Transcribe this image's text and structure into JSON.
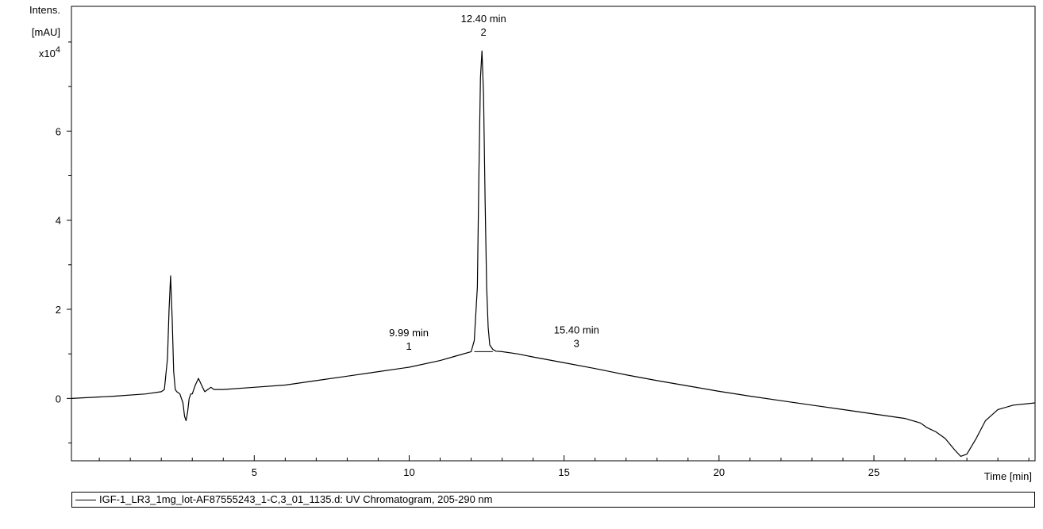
{
  "chart_data": {
    "type": "line",
    "title": "",
    "xlabel": "Time [min]",
    "ylabel_lines": [
      "Intens.",
      "[mAU]",
      "x10"
    ],
    "ylabel_exponent": "4",
    "xlim": [
      -0.9,
      30.2
    ],
    "ylim": [
      -1.4,
      8.8
    ],
    "x_ticks": [
      5,
      10,
      15,
      20,
      25
    ],
    "y_ticks": [
      0,
      2,
      4,
      6
    ],
    "grid": false,
    "legend_position": "bottom",
    "series": [
      {
        "name": "IGF-1_LR3_1mg_lot-AF87555243_1-C,3_01_1135.d: UV Chromatogram, 205-290 nm",
        "color": "#000000",
        "x": [
          -0.9,
          0.5,
          1.5,
          2.0,
          2.1,
          2.2,
          2.25,
          2.3,
          2.35,
          2.4,
          2.45,
          2.5,
          2.6,
          2.7,
          2.75,
          2.8,
          2.85,
          2.9,
          2.95,
          3.0,
          3.1,
          3.2,
          3.3,
          3.4,
          3.5,
          3.6,
          3.7,
          3.8,
          4.0,
          5.0,
          6.0,
          7.0,
          8.0,
          9.0,
          10.0,
          11.0,
          11.5,
          12.0,
          12.1,
          12.2,
          12.25,
          12.3,
          12.35,
          12.4,
          12.45,
          12.5,
          12.55,
          12.6,
          12.7,
          12.8,
          13.0,
          13.5,
          14.0,
          15.0,
          16.0,
          17.0,
          18.0,
          19.0,
          20.0,
          21.0,
          22.0,
          23.0,
          24.0,
          25.0,
          26.0,
          26.5,
          26.7,
          27.0,
          27.3,
          27.6,
          27.8,
          28.0,
          28.3,
          28.6,
          29.0,
          29.5,
          30.2
        ],
        "y": [
          0.0,
          0.05,
          0.1,
          0.15,
          0.2,
          0.9,
          2.0,
          2.75,
          1.8,
          0.6,
          0.2,
          0.15,
          0.1,
          -0.1,
          -0.4,
          -0.5,
          -0.3,
          0.0,
          0.1,
          0.1,
          0.3,
          0.45,
          0.3,
          0.15,
          0.2,
          0.25,
          0.2,
          0.2,
          0.2,
          0.25,
          0.3,
          0.4,
          0.5,
          0.6,
          0.7,
          0.85,
          0.95,
          1.05,
          1.3,
          2.5,
          5.0,
          7.2,
          7.8,
          6.8,
          4.5,
          2.5,
          1.6,
          1.2,
          1.1,
          1.06,
          1.05,
          1.0,
          0.93,
          0.8,
          0.67,
          0.53,
          0.4,
          0.28,
          0.16,
          0.05,
          -0.05,
          -0.15,
          -0.25,
          -0.35,
          -0.45,
          -0.55,
          -0.65,
          -0.75,
          -0.9,
          -1.15,
          -1.3,
          -1.25,
          -0.9,
          -0.5,
          -0.25,
          -0.15,
          -0.1
        ]
      }
    ],
    "annotations": [
      {
        "time_label": "12.40 min",
        "peak_label": "2",
        "x": 12.4,
        "y": 7.8,
        "baseline": 1.05,
        "style": "peak"
      },
      {
        "time_label": "9.99 min",
        "peak_label": "1",
        "x": 9.99,
        "y": 0.72,
        "style": "minor"
      },
      {
        "time_label": "15.40 min",
        "peak_label": "3",
        "x": 15.4,
        "y": 0.78,
        "style": "minor"
      }
    ]
  },
  "legend": {
    "label": "IGF-1_LR3_1mg_lot-AF87555243_1-C,3_01_1135.d: UV Chromatogram, 205-290 nm"
  }
}
